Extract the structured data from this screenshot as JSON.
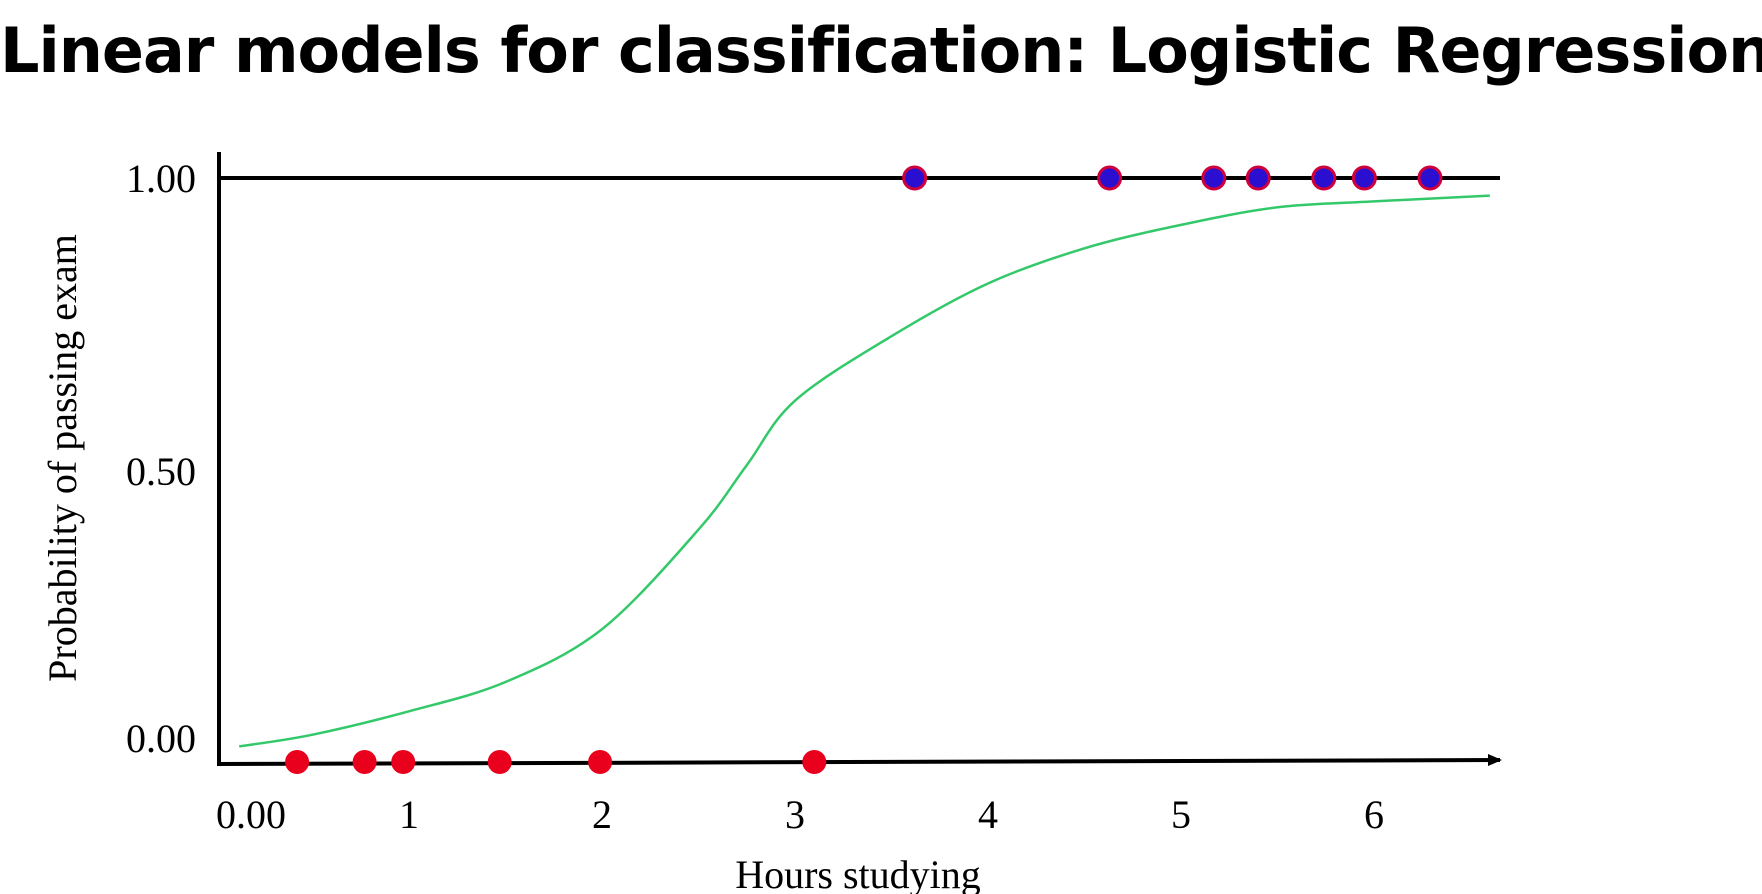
{
  "slide": {
    "title": "Linear models for classification: Logistic Regression"
  },
  "chart_data": {
    "type": "scatter",
    "title": "Linear models for classification: Logistic Regression",
    "xlabel": "Hours studying",
    "ylabel": "Probability of passing exam",
    "xlim": [
      0,
      6.6
    ],
    "ylim": [
      0,
      1
    ],
    "x_ticks": [
      {
        "value": 0,
        "label": "0.00"
      },
      {
        "value": 1,
        "label": "1"
      },
      {
        "value": 2,
        "label": "2"
      },
      {
        "value": 3,
        "label": "3"
      },
      {
        "value": 4,
        "label": "4"
      },
      {
        "value": 5,
        "label": "5"
      },
      {
        "value": 6,
        "label": "6"
      }
    ],
    "y_ticks": [
      {
        "value": 0,
        "label": "0.00"
      },
      {
        "value": 0.5,
        "label": "0.50"
      },
      {
        "value": 1,
        "label": "1.00"
      }
    ],
    "grid": false,
    "series": [
      {
        "kind": "points",
        "color": "#e8001c",
        "x": [
          0.42,
          0.77,
          0.97,
          1.47,
          1.99,
          3.1
        ],
        "y": [
          0,
          0,
          0,
          0,
          0,
          0
        ]
      },
      {
        "kind": "points",
        "color": "#2a0fd0",
        "edge_color": "#d0003a",
        "x": [
          3.62,
          4.63,
          5.17,
          5.4,
          5.74,
          5.95,
          6.29
        ],
        "y": [
          1,
          1,
          1,
          1,
          1,
          1,
          1
        ]
      },
      {
        "kind": "curve",
        "color": "#33c96a",
        "x": [
          0.12,
          0.5,
          1.0,
          1.5,
          2.0,
          2.5,
          2.75,
          3.0,
          3.5,
          4.0,
          4.5,
          5.0,
          5.5,
          6.0,
          6.6
        ],
        "y": [
          0.03,
          0.05,
          0.09,
          0.14,
          0.23,
          0.4,
          0.51,
          0.62,
          0.73,
          0.82,
          0.88,
          0.92,
          0.95,
          0.96,
          0.97
        ]
      }
    ]
  }
}
